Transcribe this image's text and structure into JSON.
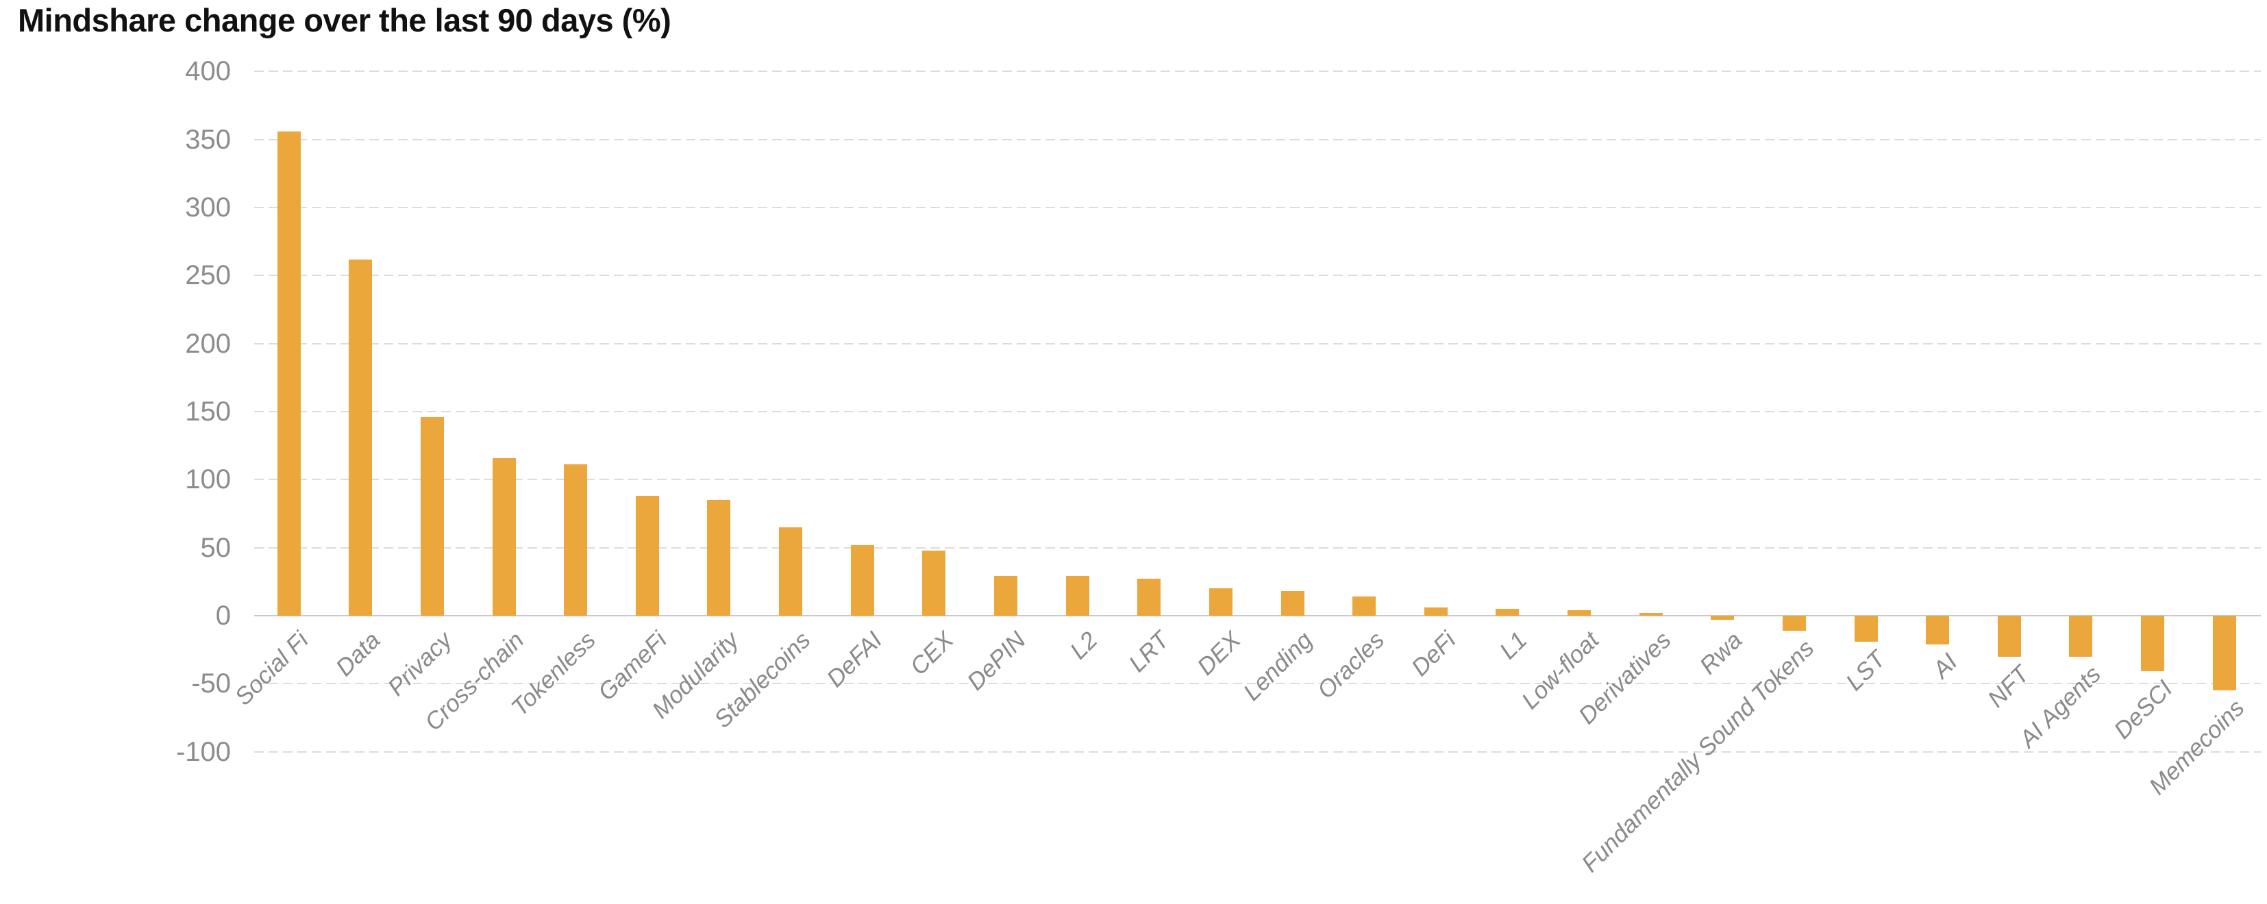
{
  "chart_data": {
    "type": "bar",
    "title": "Mindshare change over the last 90 days (%)",
    "categories": [
      "Social Fi",
      "Data",
      "Privacy",
      "Cross-chain",
      "Tokenless",
      "GameFi",
      "Modularity",
      "Stablecoins",
      "DeFAI",
      "CEX",
      "DePIN",
      "L2",
      "LRT",
      "DEX",
      "Lending",
      "Oracles",
      "DeFi",
      "L1",
      "Low-float",
      "Derivatives",
      "Rwa",
      "Fundamentally Sound Tokens",
      "LST",
      "AI",
      "NFT",
      "AI Agents",
      "DeSCI",
      "Memecoins"
    ],
    "values": [
      356,
      262,
      146,
      116,
      111,
      88,
      85,
      65,
      52,
      48,
      29,
      29,
      27,
      20,
      18,
      14,
      6,
      5,
      4,
      2,
      -3,
      -11,
      -19,
      -21,
      -30,
      -30,
      -41,
      -55
    ],
    "xlabel": "",
    "ylabel": "",
    "ylim": [
      -100,
      400
    ],
    "ytick_step": 50,
    "ytick_labels": [
      "400",
      "350",
      "300",
      "250",
      "200",
      "150",
      "100",
      "50",
      "0",
      "-50",
      "-100"
    ],
    "grid": "horizontal dashed gridlines, solid zero baseline",
    "legend": "none",
    "bar_color": "#EBA73C"
  },
  "style": {
    "background": "#FFFFFF",
    "title_color": "#111111",
    "axis_text_color": "#8C8C8C",
    "xlabel_text_color": "#8A8A8A",
    "gridline_color": "#DCDCDC",
    "baseline_color": "#C9C9C9"
  }
}
